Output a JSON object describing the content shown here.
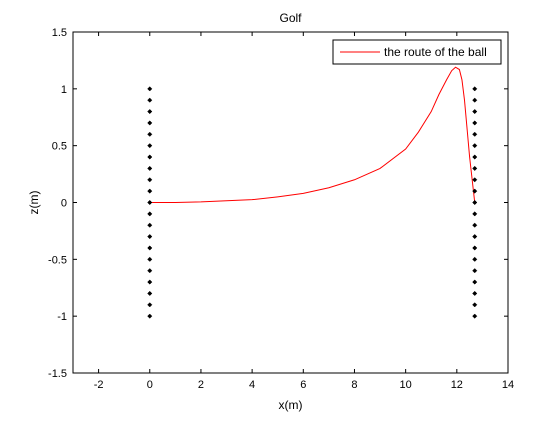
{
  "figure": {
    "background": "#ffffff",
    "axes_color": "#000000"
  },
  "chart_data": {
    "type": "line",
    "title": "Golf",
    "xlabel": "x(m)",
    "ylabel": "z(m)",
    "xlim": [
      -3,
      14
    ],
    "ylim": [
      -1.5,
      1.5
    ],
    "xticks": [
      -2,
      0,
      2,
      4,
      6,
      8,
      10,
      12,
      14
    ],
    "yticks": [
      -1.5,
      -1,
      -0.5,
      0,
      0.5,
      1,
      1.5
    ],
    "xtick_labels": [
      "-2",
      "0",
      "2",
      "4",
      "6",
      "8",
      "10",
      "12",
      "14"
    ],
    "ytick_labels": [
      "-1.5",
      "-1",
      "-0.5",
      "0",
      "0.5",
      "1",
      "1.5"
    ],
    "grid": false,
    "legend": {
      "placement": "top-right",
      "entries": [
        "the route of the ball"
      ]
    },
    "series": [
      {
        "name": "the route of the ball",
        "color": "#ff0000",
        "x": [
          0,
          1,
          2,
          3,
          4,
          5,
          6,
          7,
          8,
          9,
          10,
          10.5,
          11,
          11.3,
          11.6,
          11.8,
          11.95,
          12.1,
          12.2,
          12.3,
          12.4,
          12.5,
          12.6,
          12.7
        ],
        "y": [
          0,
          0,
          0.005,
          0.015,
          0.025,
          0.05,
          0.08,
          0.13,
          0.2,
          0.3,
          0.47,
          0.62,
          0.8,
          0.95,
          1.08,
          1.16,
          1.19,
          1.17,
          1.08,
          0.9,
          0.65,
          0.4,
          0.2,
          0.0
        ]
      },
      {
        "name": "",
        "type": "scatter",
        "color": "#000000",
        "marker": "diamond",
        "x": [
          0,
          0,
          0,
          0,
          0,
          0,
          0,
          0,
          0,
          0,
          0,
          0,
          0,
          0,
          0,
          0,
          0,
          0,
          0,
          0,
          0
        ],
        "y": [
          -1,
          -0.9,
          -0.8,
          -0.7,
          -0.6,
          -0.5,
          -0.4,
          -0.3,
          -0.2,
          -0.1,
          0,
          0.1,
          0.2,
          0.3,
          0.4,
          0.5,
          0.6,
          0.7,
          0.8,
          0.9,
          1
        ]
      },
      {
        "name": "",
        "type": "scatter",
        "color": "#000000",
        "marker": "diamond",
        "x": [
          12.7,
          12.7,
          12.7,
          12.7,
          12.7,
          12.7,
          12.7,
          12.7,
          12.7,
          12.7,
          12.7,
          12.7,
          12.7,
          12.7,
          12.7,
          12.7,
          12.7,
          12.7,
          12.7,
          12.7,
          12.7
        ],
        "y": [
          -1,
          -0.9,
          -0.8,
          -0.7,
          -0.6,
          -0.5,
          -0.4,
          -0.3,
          -0.2,
          -0.1,
          0,
          0.1,
          0.2,
          0.3,
          0.4,
          0.5,
          0.6,
          0.7,
          0.8,
          0.9,
          1
        ]
      }
    ]
  }
}
